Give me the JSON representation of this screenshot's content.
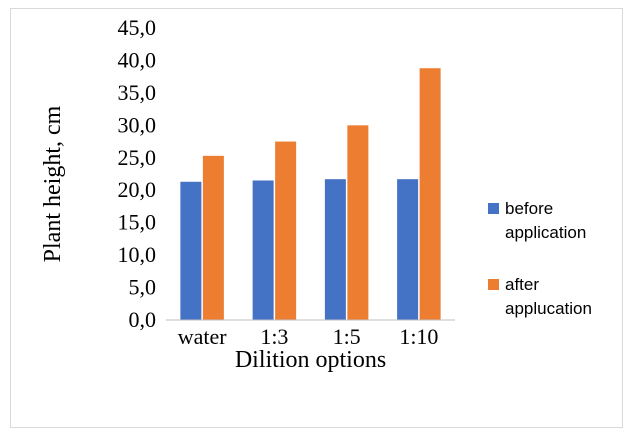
{
  "chart_data": {
    "type": "bar",
    "title": "",
    "xlabel": "Dilition options",
    "ylabel": "Plant height, cm",
    "categories": [
      "water",
      "1:3",
      "1:5",
      "1:10"
    ],
    "series": [
      {
        "name": "before application",
        "legend_lines": [
          "before",
          "application"
        ],
        "color": "#4472c4",
        "values": [
          21.3,
          21.5,
          21.7,
          21.7
        ]
      },
      {
        "name": "after applucation",
        "legend_lines": [
          "after",
          "applucation"
        ],
        "color": "#ed7d31",
        "values": [
          25.3,
          27.5,
          30.0,
          38.8
        ]
      }
    ],
    "ylim": [
      0,
      45
    ],
    "y_ticks": [
      "0,0",
      "5,0",
      "10,0",
      "15,0",
      "20,0",
      "25,0",
      "30,0",
      "35,0",
      "40,0",
      "45,0"
    ],
    "y_tick_step": 5,
    "grid": false,
    "legend": "right"
  }
}
